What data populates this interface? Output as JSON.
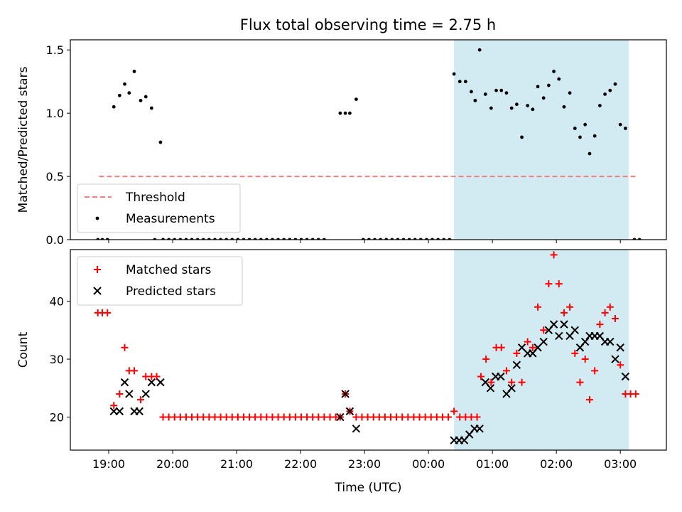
{
  "title": "Flux total observing time = 2.75 h",
  "x_tick_labels": [
    "19:00",
    "20:00",
    "21:00",
    "22:00",
    "23:00",
    "00:00",
    "01:00",
    "02:00",
    "03:00"
  ],
  "chart_data": [
    {
      "type": "scatter",
      "ylabel": "Matched/Predicted stars",
      "xlabel": "",
      "ylim": [
        0,
        1.58
      ],
      "y_ticks": [
        0.0,
        0.5,
        1.0,
        1.5
      ],
      "y_tick_labels": [
        "0.0",
        "0.5",
        "1.0",
        "1.5"
      ],
      "x_unit": "hours from 19:00 UTC (ticks 19:00 … 03:00)",
      "xlim": [
        -0.6,
        8.72
      ],
      "legend_position": "lower-left",
      "highlight": {
        "x_start": 5.4,
        "x_end": 8.13,
        "color": "#add8e6"
      },
      "series": [
        {
          "name": "Threshold",
          "style": "dashed-line",
          "color": "#f08080",
          "points": [
            [
              -0.15,
              0.5
            ],
            [
              8.25,
              0.5
            ]
          ]
        },
        {
          "name": "Measurements",
          "style": "dot",
          "color": "#000000",
          "points": [
            [
              -0.17,
              0.0
            ],
            [
              -0.1,
              0.0
            ],
            [
              -0.02,
              0.0
            ],
            [
              0.08,
              1.05
            ],
            [
              0.17,
              1.14
            ],
            [
              0.25,
              1.23
            ],
            [
              0.32,
              1.16
            ],
            [
              0.4,
              1.33
            ],
            [
              0.5,
              1.1
            ],
            [
              0.58,
              1.13
            ],
            [
              0.67,
              1.04
            ],
            [
              0.81,
              0.77
            ],
            [
              0.72,
              0.0
            ],
            [
              0.85,
              0.0
            ],
            [
              0.94,
              0.0
            ],
            [
              1.03,
              0.0
            ],
            [
              1.12,
              0.0
            ],
            [
              1.21,
              0.0
            ],
            [
              1.3,
              0.0
            ],
            [
              1.39,
              0.0
            ],
            [
              1.48,
              0.0
            ],
            [
              1.57,
              0.0
            ],
            [
              1.66,
              0.0
            ],
            [
              1.75,
              0.0
            ],
            [
              1.84,
              0.0
            ],
            [
              1.93,
              0.0
            ],
            [
              2.02,
              0.0
            ],
            [
              2.11,
              0.0
            ],
            [
              2.2,
              0.0
            ],
            [
              2.29,
              0.0
            ],
            [
              2.38,
              0.0
            ],
            [
              2.47,
              0.0
            ],
            [
              2.56,
              0.0
            ],
            [
              2.65,
              0.0
            ],
            [
              2.74,
              0.0
            ],
            [
              2.83,
              0.0
            ],
            [
              2.92,
              0.0
            ],
            [
              3.01,
              0.0
            ],
            [
              3.1,
              0.0
            ],
            [
              3.19,
              0.0
            ],
            [
              3.28,
              0.0
            ],
            [
              3.37,
              0.0
            ],
            [
              3.62,
              1.0
            ],
            [
              3.7,
              1.0
            ],
            [
              3.77,
              1.0
            ],
            [
              3.87,
              1.11
            ],
            [
              3.98,
              0.0
            ],
            [
              4.07,
              0.0
            ],
            [
              4.16,
              0.0
            ],
            [
              4.25,
              0.0
            ],
            [
              4.34,
              0.0
            ],
            [
              4.43,
              0.0
            ],
            [
              4.52,
              0.0
            ],
            [
              4.61,
              0.0
            ],
            [
              4.7,
              0.0
            ],
            [
              4.79,
              0.0
            ],
            [
              4.88,
              0.0
            ],
            [
              4.97,
              0.0
            ],
            [
              5.06,
              0.0
            ],
            [
              5.15,
              0.0
            ],
            [
              5.24,
              0.0
            ],
            [
              5.33,
              0.0
            ],
            [
              5.4,
              1.31
            ],
            [
              5.49,
              1.25
            ],
            [
              5.58,
              1.25
            ],
            [
              5.67,
              1.17
            ],
            [
              5.73,
              1.1
            ],
            [
              5.8,
              1.5
            ],
            [
              5.89,
              1.15
            ],
            [
              5.98,
              1.04
            ],
            [
              6.06,
              1.18
            ],
            [
              6.14,
              1.18
            ],
            [
              6.22,
              1.16
            ],
            [
              6.3,
              1.04
            ],
            [
              6.38,
              1.07
            ],
            [
              6.46,
              0.81
            ],
            [
              6.55,
              1.06
            ],
            [
              6.63,
              1.03
            ],
            [
              6.71,
              1.21
            ],
            [
              6.8,
              1.12
            ],
            [
              6.88,
              1.22
            ],
            [
              6.96,
              1.33
            ],
            [
              7.04,
              1.27
            ],
            [
              7.12,
              1.05
            ],
            [
              7.21,
              1.16
            ],
            [
              7.29,
              0.88
            ],
            [
              7.37,
              0.81
            ],
            [
              7.45,
              0.91
            ],
            [
              7.52,
              0.68
            ],
            [
              7.6,
              0.82
            ],
            [
              7.68,
              1.06
            ],
            [
              7.76,
              1.15
            ],
            [
              7.84,
              1.18
            ],
            [
              7.92,
              1.23
            ],
            [
              8.0,
              0.91
            ],
            [
              8.08,
              0.88
            ],
            [
              8.22,
              0.0
            ],
            [
              8.3,
              0.0
            ]
          ]
        }
      ]
    },
    {
      "type": "scatter",
      "ylabel": "Count",
      "xlabel": "Time (UTC)",
      "ylim": [
        14.3,
        48.9
      ],
      "y_ticks": [
        20,
        30,
        40
      ],
      "y_tick_labels": [
        "20",
        "30",
        "40"
      ],
      "x_unit": "hours from 19:00 UTC (ticks 19:00 … 03:00)",
      "xlim": [
        -0.6,
        8.72
      ],
      "legend_position": "upper-left",
      "highlight": {
        "x_start": 5.4,
        "x_end": 8.13,
        "color": "#add8e6"
      },
      "series": [
        {
          "name": "Matched stars",
          "marker": "plus",
          "color": "#ff0000",
          "points": [
            [
              -0.17,
              38
            ],
            [
              -0.1,
              38
            ],
            [
              -0.02,
              38
            ],
            [
              0.08,
              22
            ],
            [
              0.17,
              24
            ],
            [
              0.25,
              32
            ],
            [
              0.32,
              28
            ],
            [
              0.4,
              28
            ],
            [
              0.5,
              23
            ],
            [
              0.58,
              27
            ],
            [
              0.67,
              27
            ],
            [
              0.75,
              27
            ],
            [
              0.85,
              20
            ],
            [
              0.94,
              20
            ],
            [
              1.03,
              20
            ],
            [
              1.12,
              20
            ],
            [
              1.21,
              20
            ],
            [
              1.3,
              20
            ],
            [
              1.39,
              20
            ],
            [
              1.48,
              20
            ],
            [
              1.57,
              20
            ],
            [
              1.66,
              20
            ],
            [
              1.75,
              20
            ],
            [
              1.84,
              20
            ],
            [
              1.93,
              20
            ],
            [
              2.02,
              20
            ],
            [
              2.11,
              20
            ],
            [
              2.2,
              20
            ],
            [
              2.29,
              20
            ],
            [
              2.38,
              20
            ],
            [
              2.47,
              20
            ],
            [
              2.56,
              20
            ],
            [
              2.65,
              20
            ],
            [
              2.74,
              20
            ],
            [
              2.83,
              20
            ],
            [
              2.92,
              20
            ],
            [
              3.01,
              20
            ],
            [
              3.1,
              20
            ],
            [
              3.19,
              20
            ],
            [
              3.28,
              20
            ],
            [
              3.37,
              20
            ],
            [
              3.46,
              20
            ],
            [
              3.55,
              20
            ],
            [
              3.62,
              20
            ],
            [
              3.7,
              24
            ],
            [
              3.77,
              21
            ],
            [
              3.87,
              20
            ],
            [
              3.96,
              20
            ],
            [
              4.05,
              20
            ],
            [
              4.14,
              20
            ],
            [
              4.23,
              20
            ],
            [
              4.32,
              20
            ],
            [
              4.41,
              20
            ],
            [
              4.5,
              20
            ],
            [
              4.59,
              20
            ],
            [
              4.68,
              20
            ],
            [
              4.77,
              20
            ],
            [
              4.86,
              20
            ],
            [
              4.95,
              20
            ],
            [
              5.04,
              20
            ],
            [
              5.13,
              20
            ],
            [
              5.22,
              20
            ],
            [
              5.31,
              20
            ],
            [
              5.4,
              21
            ],
            [
              5.49,
              20
            ],
            [
              5.58,
              20
            ],
            [
              5.67,
              20
            ],
            [
              5.76,
              20
            ],
            [
              5.82,
              27
            ],
            [
              5.9,
              30
            ],
            [
              5.98,
              26
            ],
            [
              6.06,
              32
            ],
            [
              6.14,
              32
            ],
            [
              6.22,
              28
            ],
            [
              6.3,
              26
            ],
            [
              6.38,
              31
            ],
            [
              6.46,
              26
            ],
            [
              6.55,
              33
            ],
            [
              6.63,
              32
            ],
            [
              6.71,
              39
            ],
            [
              6.8,
              35
            ],
            [
              6.88,
              43
            ],
            [
              6.96,
              48
            ],
            [
              7.04,
              43
            ],
            [
              7.12,
              38
            ],
            [
              7.21,
              39
            ],
            [
              7.29,
              31
            ],
            [
              7.37,
              26
            ],
            [
              7.45,
              30
            ],
            [
              7.52,
              23
            ],
            [
              7.6,
              28
            ],
            [
              7.68,
              36
            ],
            [
              7.76,
              38
            ],
            [
              7.84,
              39
            ],
            [
              7.92,
              37
            ],
            [
              8.0,
              29
            ],
            [
              8.08,
              24
            ],
            [
              8.16,
              24
            ],
            [
              8.24,
              24
            ]
          ]
        },
        {
          "name": "Predicted stars",
          "marker": "x",
          "color": "#000000",
          "points": [
            [
              0.08,
              21
            ],
            [
              0.17,
              21
            ],
            [
              0.25,
              26
            ],
            [
              0.32,
              24
            ],
            [
              0.4,
              21
            ],
            [
              0.48,
              21
            ],
            [
              0.58,
              24
            ],
            [
              0.67,
              26
            ],
            [
              0.81,
              26
            ],
            [
              3.62,
              20
            ],
            [
              3.7,
              24
            ],
            [
              3.77,
              21
            ],
            [
              3.87,
              18
            ],
            [
              5.4,
              16
            ],
            [
              5.48,
              16
            ],
            [
              5.56,
              16
            ],
            [
              5.64,
              17
            ],
            [
              5.72,
              18
            ],
            [
              5.8,
              18
            ],
            [
              5.89,
              26
            ],
            [
              5.97,
              25
            ],
            [
              6.05,
              27
            ],
            [
              6.13,
              27
            ],
            [
              6.22,
              24
            ],
            [
              6.3,
              25
            ],
            [
              6.38,
              29
            ],
            [
              6.46,
              32
            ],
            [
              6.55,
              31
            ],
            [
              6.63,
              31
            ],
            [
              6.71,
              32
            ],
            [
              6.8,
              33
            ],
            [
              6.88,
              35
            ],
            [
              6.96,
              36
            ],
            [
              7.04,
              34
            ],
            [
              7.12,
              36
            ],
            [
              7.21,
              34
            ],
            [
              7.29,
              35
            ],
            [
              7.37,
              32
            ],
            [
              7.45,
              33
            ],
            [
              7.52,
              34
            ],
            [
              7.6,
              34
            ],
            [
              7.68,
              34
            ],
            [
              7.76,
              33
            ],
            [
              7.84,
              33
            ],
            [
              7.92,
              30
            ],
            [
              8.0,
              32
            ],
            [
              8.08,
              27
            ]
          ]
        }
      ]
    }
  ]
}
